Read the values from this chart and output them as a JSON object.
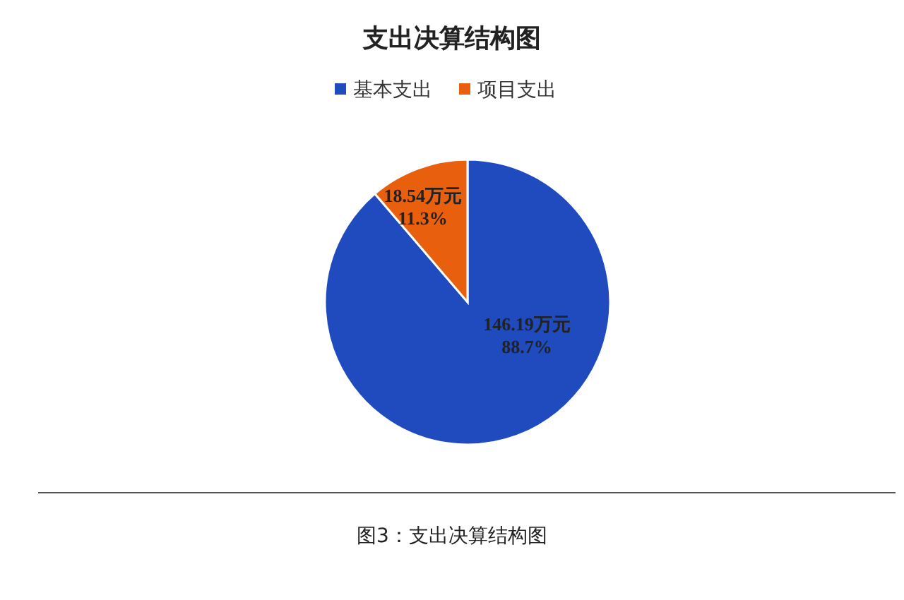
{
  "chart_data": {
    "type": "pie",
    "title": "支出决算结构图",
    "categories": [
      "基本支出",
      "项目支出"
    ],
    "values": [
      146.19,
      18.54
    ],
    "colors": [
      "#1f4bbf",
      "#e8600e"
    ],
    "value_labels": [
      "146.19万元\n88.7%",
      "18.54万元\n11.3%"
    ],
    "legend": "top",
    "annotations": [
      "图3：支出决算结构图"
    ]
  }
}
